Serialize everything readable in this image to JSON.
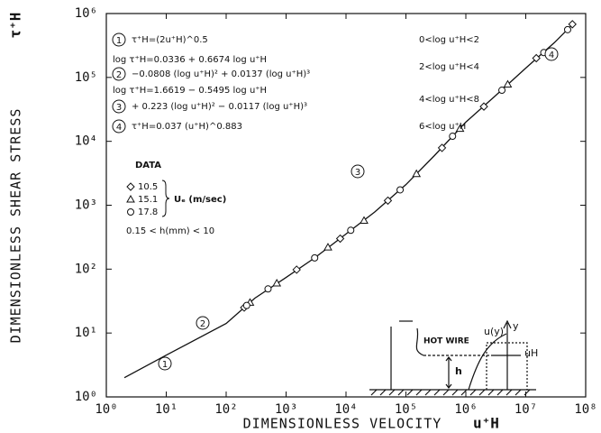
{
  "chart_data": {
    "type": "line",
    "xlabel": "DIMENSIONLESS VELOCITY",
    "xsymbol": "u⁺H",
    "ylabel": "DIMENSIONLESS SHEAR STRESS",
    "ysymbol": "τ⁺H",
    "xscale": "log",
    "yscale": "log",
    "xlim": [
      1,
      100000000
    ],
    "ylim": [
      1,
      1000000
    ],
    "xticks": [
      {
        "value": 1,
        "label": "10⁰"
      },
      {
        "value": 10,
        "label": "10¹"
      },
      {
        "value": 100,
        "label": "10²"
      },
      {
        "value": 1000,
        "label": "10³"
      },
      {
        "value": 10000,
        "label": "10⁴"
      },
      {
        "value": 100000,
        "label": "10⁵"
      },
      {
        "value": 1000000,
        "label": "10⁶"
      },
      {
        "value": 10000000,
        "label": "10⁷"
      },
      {
        "value": 100000000,
        "label": "10⁸"
      }
    ],
    "yticks": [
      {
        "value": 1,
        "label": "10⁰"
      },
      {
        "value": 10,
        "label": "10¹"
      },
      {
        "value": 100,
        "label": "10²"
      },
      {
        "value": 1000,
        "label": "10³"
      },
      {
        "value": 10000,
        "label": "10⁴"
      },
      {
        "value": 100000,
        "label": "10⁵"
      },
      {
        "value": 1000000,
        "label": "10⁶"
      }
    ],
    "series": [
      {
        "kind": "line",
        "color": "#111111",
        "x": [
          2,
          10,
          100,
          300,
          1000,
          3000,
          10000,
          30000,
          100000,
          300000,
          1000000,
          3000000,
          10000000,
          30000000,
          60000000
        ],
        "values": [
          2,
          4.5,
          14.1,
          35,
          74,
          150,
          355,
          780,
          2100,
          6000,
          20000,
          50000,
          140000,
          350000,
          670000
        ]
      },
      {
        "kind": "scatter",
        "name": "10.5",
        "marker": "diamond",
        "color": "#111111",
        "x": [
          200,
          1500,
          8000,
          50000,
          400000,
          2000000,
          15000000,
          60000000
        ],
        "values": [
          25,
          98,
          300,
          1180,
          7900,
          35000,
          200000,
          680000
        ]
      },
      {
        "kind": "scatter",
        "name": "15.1",
        "marker": "triangle",
        "color": "#111111",
        "x": [
          250,
          700,
          5000,
          20000,
          150000,
          800000,
          5000000
        ],
        "values": [
          30,
          60,
          220,
          575,
          3100,
          15800,
          78000
        ]
      },
      {
        "kind": "scatter",
        "name": "17.8",
        "marker": "circle",
        "color": "#111111",
        "x": [
          220,
          500,
          3000,
          12000,
          80000,
          600000,
          4000000,
          20000000,
          50000000
        ],
        "values": [
          27,
          49,
          150,
          405,
          1740,
          12000,
          63000,
          245000,
          560000
        ]
      }
    ],
    "equations": [
      {
        "number": "1",
        "lines": [
          "τ⁺H=(2u⁺H)^0.5"
        ],
        "range": "0<log u⁺H<2"
      },
      {
        "number": "2",
        "lines": [
          "log τ⁺H=0.0336 + 0.6674 log u⁺H",
          "−0.0808 (log u⁺H)² + 0.0137 (log u⁺H)³"
        ],
        "range": "2<log u⁺H<4"
      },
      {
        "number": "3",
        "lines": [
          "log τ⁺H=1.6619 − 0.5495 log u⁺H",
          "+ 0.223 (log u⁺H)² − 0.0117 (log u⁺H)³"
        ],
        "range": "4<log u⁺H<8"
      },
      {
        "number": "4",
        "lines": [
          "τ⁺H=0.037 (u⁺H)^0.883"
        ],
        "range": "6<log u⁺H"
      }
    ],
    "legend_title": "DATA",
    "legend_unit": "Uₑ (m/sec)",
    "legend_note": "0.15 < h(mm) < 10",
    "curve_labels": [
      "1",
      "2",
      "3",
      "4"
    ],
    "inset": {
      "profile": "u(y)",
      "axis": "y",
      "probe": "HOT WIRE",
      "velocity": "uH",
      "height": "h"
    }
  }
}
